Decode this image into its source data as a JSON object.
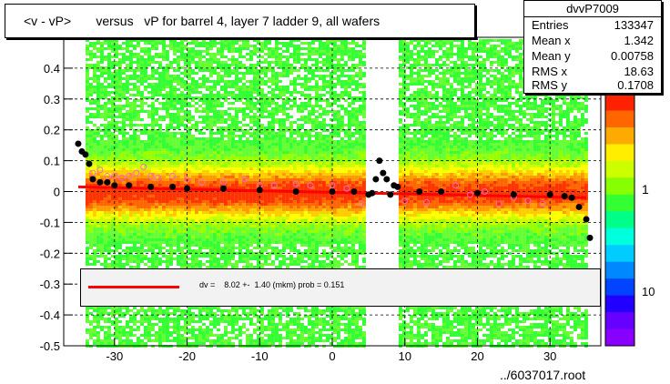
{
  "title": "<v - vP>       versus   vP for barrel 4, layer 7 ladder 9, all wafers",
  "stats": {
    "name": "dvvP7009",
    "rows": [
      {
        "label": "Entries",
        "value": "133347"
      },
      {
        "label": "Mean x",
        "value": "1.342"
      },
      {
        "label": "Mean y",
        "value": "0.00758"
      },
      {
        "label": "RMS x",
        "value": "18.63"
      },
      {
        "label": "RMS y",
        "value": "0.1708"
      }
    ]
  },
  "fit_legend": "dv =    8.02 +-  1.40 (mkm) prob = 0.151",
  "footer": "../6037017.root",
  "colors": {
    "fit_line": "#ff0000",
    "profile_markers": "#000000",
    "secondary_markers": "#ff66cc",
    "palette_low": "#8000ff",
    "palette_high": "#ff2200"
  },
  "chart_data": {
    "type": "heatmap",
    "xlim": [
      -37,
      37
    ],
    "ylim": [
      -0.5,
      0.5
    ],
    "x_ticks": [
      -30,
      -20,
      -10,
      0,
      10,
      20,
      30
    ],
    "x_tick_labels": [
      "-30",
      "-20",
      "-10",
      "0",
      "10",
      "20",
      "30"
    ],
    "y_ticks": [
      -0.5,
      -0.4,
      -0.3,
      -0.2,
      -0.1,
      0,
      0.1,
      0.2,
      0.3,
      0.4
    ],
    "y_tick_labels": [
      "-0.5",
      "-0.4",
      "-0.3",
      "-0.2",
      "-0.1",
      "0",
      "0.1",
      "0.2",
      "0.3",
      "0.4"
    ],
    "grid": true,
    "colorbar": {
      "scale": "log",
      "labels": [
        "1",
        "10"
      ]
    },
    "profile": {
      "x": [
        -35,
        -34.5,
        -34,
        -33.5,
        -33,
        -32,
        -31,
        -30,
        -28,
        -25,
        -22,
        -20,
        -15,
        -10,
        -5,
        0,
        3,
        5,
        5.5,
        6,
        6.5,
        7,
        7.5,
        8,
        8.5,
        9,
        12,
        15,
        20,
        25,
        30,
        32,
        33,
        34,
        35,
        35.5
      ],
      "y": [
        0.155,
        0.13,
        0.12,
        0.09,
        0.04,
        0.03,
        0.03,
        0.02,
        0.02,
        0.015,
        0.015,
        0.01,
        0.01,
        0.005,
        0.0,
        0.0,
        0.0,
        -0.01,
        -0.005,
        0.04,
        0.1,
        0.06,
        0.04,
        -0.01,
        0.02,
        0.015,
        0.0,
        0.0,
        -0.005,
        -0.01,
        -0.01,
        -0.015,
        -0.02,
        -0.05,
        -0.09,
        -0.15
      ]
    },
    "secondary_points": {
      "x": [
        -33,
        -32,
        -31,
        -30,
        -29,
        -28,
        -27,
        -26,
        -25,
        -24,
        -22,
        -20,
        -18,
        -15,
        -12,
        -10,
        -8,
        -5,
        -3,
        0,
        2,
        4,
        10,
        13,
        15,
        17,
        19,
        21,
        23,
        25,
        27,
        29
      ],
      "y": [
        0.06,
        0.07,
        0.05,
        0.05,
        0.045,
        0.05,
        0.06,
        0.08,
        0.05,
        0.045,
        0.05,
        0.04,
        0.03,
        0.03,
        0.04,
        0.02,
        0.02,
        0.025,
        0.02,
        0.02,
        0.01,
        -0.04,
        -0.03,
        -0.035,
        0.0,
        0.02,
        -0.01,
        0.0,
        -0.04,
        -0.02,
        -0.03,
        -0.04
      ]
    },
    "fit": {
      "x": [
        -35,
        35
      ],
      "y": [
        0.015,
        -0.02
      ]
    }
  }
}
